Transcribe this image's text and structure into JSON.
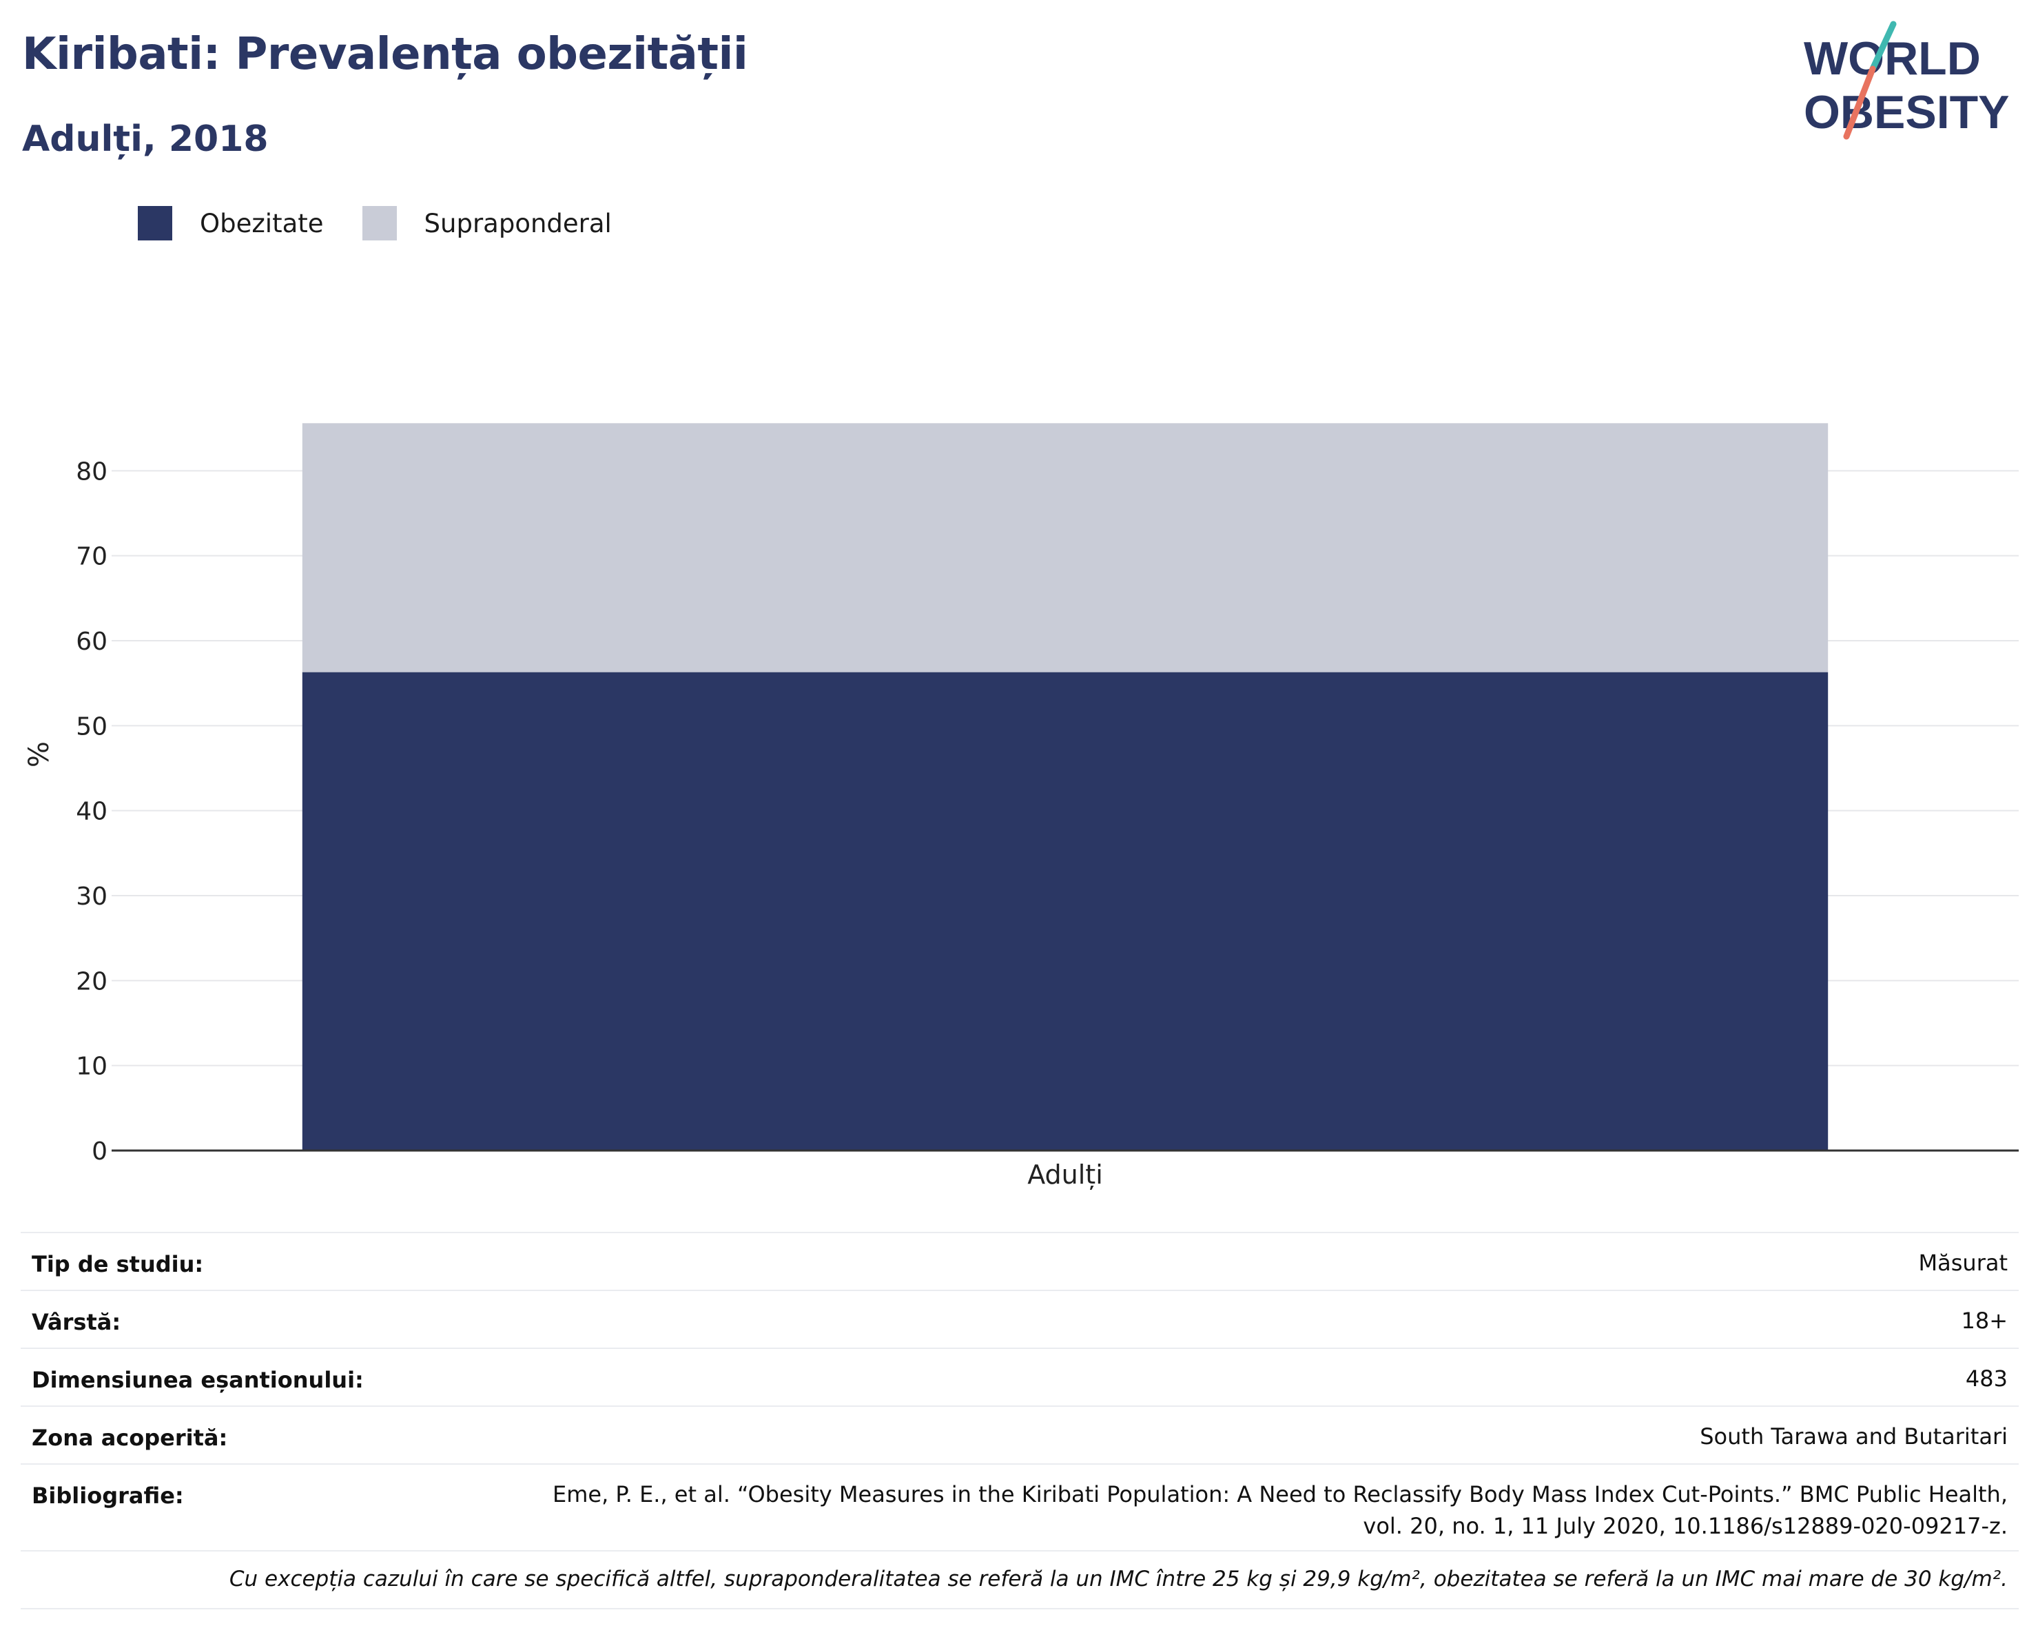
{
  "header": {
    "title": "Kiribati: Prevalența obezității",
    "subtitle": "Adulți, 2018"
  },
  "logo": {
    "line1": "WORLD",
    "line2": "OBESITY",
    "accent_teal": "#3fb8b0",
    "accent_coral": "#e8735f"
  },
  "legend": [
    {
      "label": "Obezitate",
      "color": "#2b3764"
    },
    {
      "label": "Supraponderal",
      "color": "#c9ccd7"
    }
  ],
  "chart_data": {
    "type": "bar",
    "stacked": true,
    "categories": [
      "Adulți"
    ],
    "series": [
      {
        "name": "Obezitate",
        "values": [
          56.3
        ],
        "color": "#2b3764"
      },
      {
        "name": "Supraponderal",
        "values": [
          29.3
        ],
        "color": "#c9ccd7"
      }
    ],
    "ylabel": "%",
    "xlabel": "",
    "ylim": [
      0,
      90
    ],
    "yticks": [
      0,
      10,
      20,
      30,
      40,
      50,
      60,
      70,
      80
    ],
    "grid": true,
    "legend_position": "top-left"
  },
  "info": {
    "rows": [
      {
        "label": "Tip de studiu:",
        "value": "Măsurat"
      },
      {
        "label": "Vârstă:",
        "value": "18+"
      },
      {
        "label": "Dimensiunea eșantionului:",
        "value": "483"
      },
      {
        "label": "Zona acoperită:",
        "value": "South Tarawa and Butaritari"
      }
    ],
    "bibliography": {
      "label": "Bibliografie:",
      "line1": "Eme, P. E., et al. “Obesity Measures in the Kiribati Population: A Need to Reclassify Body Mass Index Cut-Points.” BMC Public Health,",
      "line2": "vol. 20, no. 1, 11 July 2020, 10.1186/s12889-020-09217-z."
    },
    "note": "Cu excepția cazului în care se specifică altfel, supraponderalitatea se referă la un IMC între 25 kg și 29,9 kg/m², obezitatea se referă la un IMC mai mare de 30 kg/m²."
  }
}
